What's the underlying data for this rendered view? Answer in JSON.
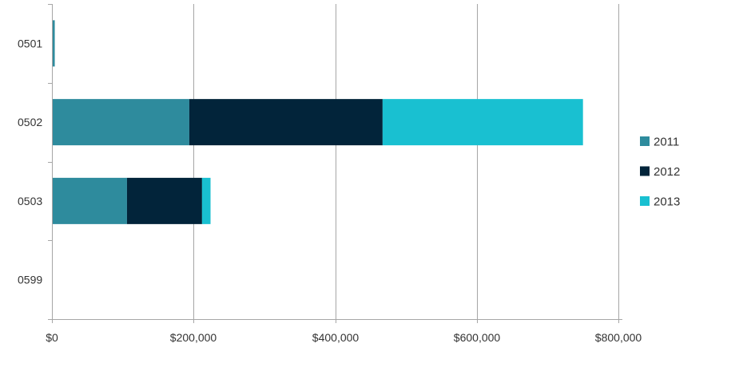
{
  "chart_data": {
    "type": "bar",
    "orientation": "horizontal",
    "stacked": true,
    "title": "",
    "xlabel": "",
    "ylabel": "",
    "categories": [
      "0501",
      "0502",
      "0503",
      "0599"
    ],
    "series": [
      {
        "name": "2011",
        "color": "#2e8b9d",
        "values": [
          4000,
          194000,
          106000,
          0
        ]
      },
      {
        "name": "2012",
        "color": "#02243a",
        "values": [
          0,
          273000,
          106000,
          0
        ]
      },
      {
        "name": "2013",
        "color": "#19c0d1",
        "values": [
          0,
          283000,
          12000,
          0
        ]
      }
    ],
    "xlim": [
      0,
      800000
    ],
    "x_ticks": [
      0,
      200000,
      400000,
      600000,
      800000
    ],
    "x_tick_labels": [
      "$0",
      "$200,000",
      "$400,000",
      "$600,000",
      "$800,000"
    ],
    "grid": "vertical",
    "legend_position": "right"
  }
}
